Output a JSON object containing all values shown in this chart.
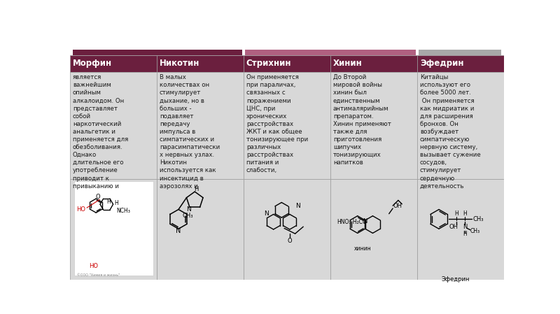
{
  "headers": [
    "Морфин",
    "Никотин",
    "Стрихнин",
    "Хинин",
    "Эфедрин"
  ],
  "header_bg": "#6B1F3E",
  "header_text_color": "#FFFFFF",
  "body_bg": "#D8D8D8",
  "body_text_color": "#1a1a1a",
  "image_bg": "#D8D8D8",
  "struct_bg": "#FFFFFF",
  "texts": [
    "является\nважнейшим\nопийным\nалкалоидом. Он\nпредставляет\nсобой\nнаркотический\nанальгетик и\nприменяется для\nобезболивания.\nОднако\nдлительное его\nупотребление\nприводит к\nпривыканию и",
    "В малых\nколичествах он\nстимулирует\nдыхание, но в\nбольших -\nподавляет\nпередачу\nимпульса в\nсимпатических и\nпарасимпатически\nх нервных узлах.\nНикотин\nиспользуется как\nинсектицид в\nаэрозолях и",
    "Он применяется\nпри параличах,\nсвязанных с\nпоражениеми\nЦНС, при\nхронических\nрасстройствах\nЖКТ и как общее\nтонизирующее при\nразличных\nрасстройствах\nпитания и\nслабости,",
    "До Второй\nмировой войны\nхинин был\nединственным\nантималярийным\nпрепаратом.\nХинин применяют\nтакже для\nприготовления\nшипучих\nтонизирующих\nнапитков",
    "Китайцы\nиспользуют его\nболее 5000 лет.\n Он применяется\nкак мидриатик и\nдля расширения\nбронхов. Он\nвозбуждает\nсимпатическую\nнервную систему,\nвызывает сужение\nсосудов,\nстимулирует\nсердечную\nдеятельность"
  ],
  "n_cols": 5,
  "figsize": [
    8.0,
    4.49
  ],
  "dpi": 100,
  "font_size_header": 8.5,
  "font_size_body": 6.2,
  "border_color": "#999999",
  "bar1_color": "#6B1F3E",
  "bar2_color": "#B06080",
  "bar3_color": "#A8A8A8",
  "label_quinine": "хинин",
  "label_ephedrine": "Эфедрин"
}
